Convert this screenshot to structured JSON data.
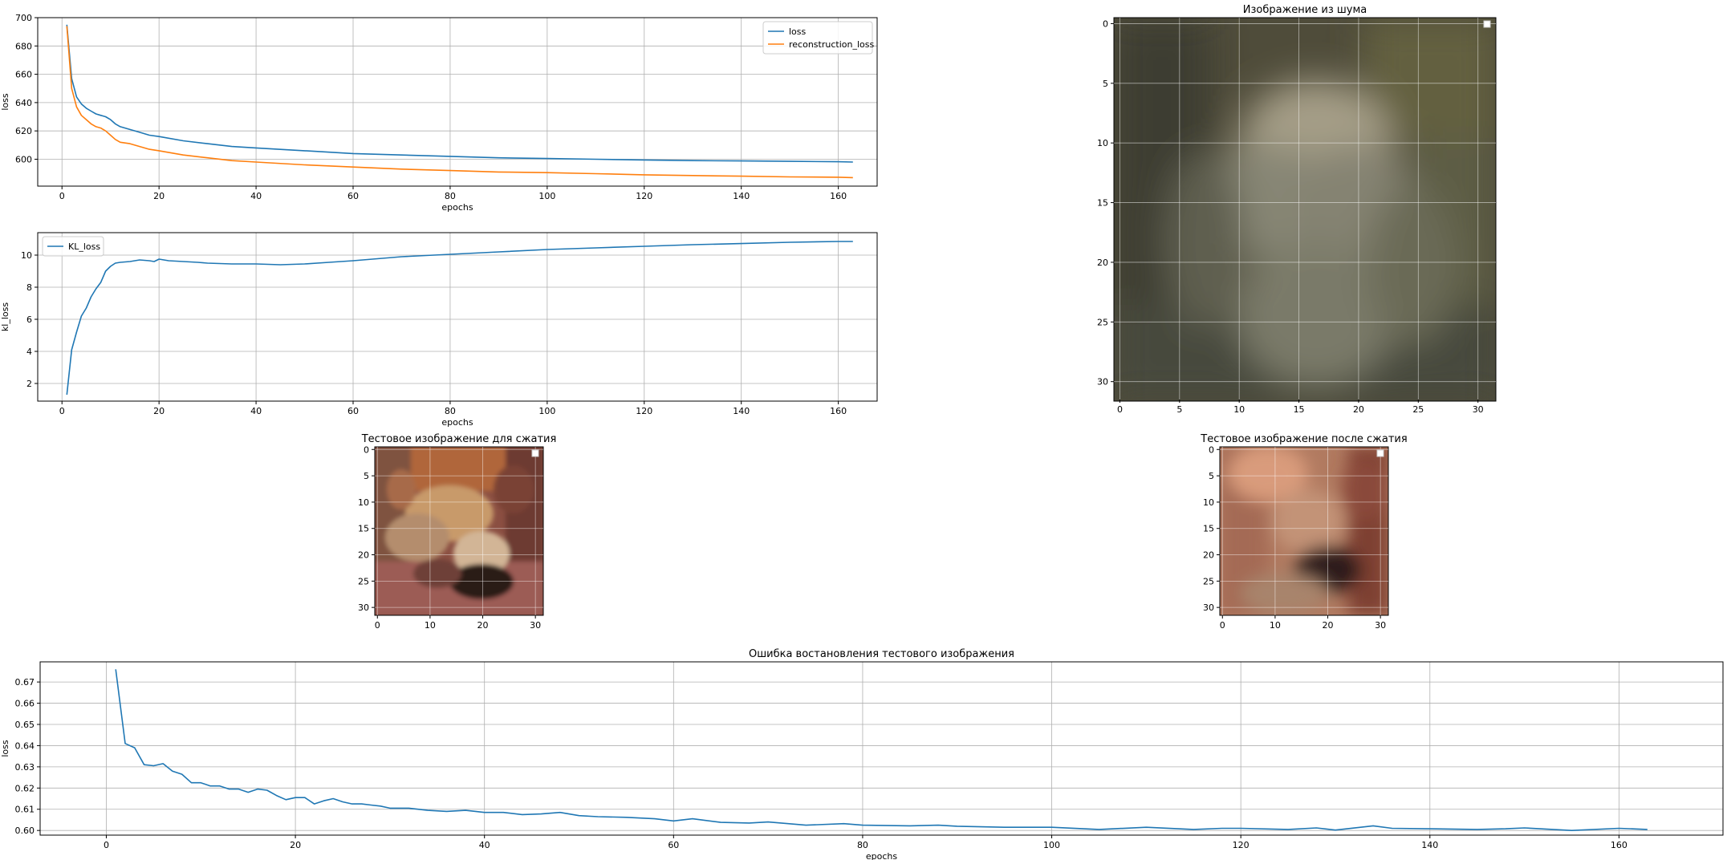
{
  "chart_data": [
    {
      "type": "line",
      "title": "",
      "xlabel": "epochs",
      "ylabel": "loss",
      "xlim": [
        -5,
        168
      ],
      "ylim": [
        581,
        700
      ],
      "xticks": [
        0,
        20,
        40,
        60,
        80,
        100,
        120,
        140,
        160
      ],
      "yticks": [
        600,
        620,
        640,
        660,
        680,
        700
      ],
      "grid": true,
      "legend": "top-right",
      "series": [
        {
          "name": "loss",
          "color": "#1f77b4",
          "x": [
            1,
            2,
            3,
            4,
            5,
            6,
            7,
            8,
            9,
            10,
            11,
            12,
            14,
            16,
            18,
            20,
            25,
            30,
            35,
            40,
            50,
            60,
            70,
            80,
            90,
            100,
            110,
            120,
            130,
            140,
            150,
            160,
            163
          ],
          "y": [
            695,
            657,
            644,
            639,
            636,
            634,
            632,
            631,
            630,
            628,
            625,
            623,
            621,
            619,
            617,
            616,
            613,
            611,
            609,
            608,
            606,
            604,
            603,
            602,
            601,
            600.5,
            600,
            599.5,
            599,
            598.8,
            598.5,
            598.2,
            598
          ]
        },
        {
          "name": "reconstruction_loss",
          "color": "#ff7f0e",
          "x": [
            1,
            2,
            3,
            4,
            5,
            6,
            7,
            8,
            9,
            10,
            11,
            12,
            14,
            16,
            18,
            20,
            25,
            30,
            35,
            40,
            50,
            60,
            70,
            80,
            90,
            100,
            110,
            120,
            130,
            140,
            150,
            160,
            163
          ],
          "y": [
            694,
            650,
            637,
            631,
            628,
            625,
            623,
            622,
            620,
            617,
            614,
            612,
            611,
            609,
            607,
            606,
            603,
            601,
            599,
            598,
            596,
            594.5,
            593,
            592,
            591,
            590.5,
            589.8,
            589,
            588.5,
            588,
            587.5,
            587.3,
            587
          ]
        }
      ]
    },
    {
      "type": "line",
      "title": "",
      "xlabel": "epochs",
      "ylabel": "kl_loss",
      "xlim": [
        -5,
        168
      ],
      "ylim": [
        0.9,
        11.4
      ],
      "xticks": [
        0,
        20,
        40,
        60,
        80,
        100,
        120,
        140,
        160
      ],
      "yticks": [
        2,
        4,
        6,
        8,
        10
      ],
      "grid": true,
      "legend": "top-left",
      "series": [
        {
          "name": "KL_loss",
          "color": "#1f77b4",
          "x": [
            1,
            2,
            3,
            4,
            5,
            6,
            7,
            8,
            9,
            10,
            11,
            12,
            14,
            16,
            18,
            19,
            20,
            22,
            25,
            28,
            30,
            35,
            40,
            45,
            50,
            55,
            60,
            70,
            80,
            90,
            100,
            110,
            120,
            130,
            140,
            150,
            160,
            163
          ],
          "y": [
            1.3,
            4.1,
            5.2,
            6.2,
            6.7,
            7.4,
            7.9,
            8.3,
            9.0,
            9.3,
            9.5,
            9.55,
            9.6,
            9.7,
            9.65,
            9.6,
            9.75,
            9.65,
            9.6,
            9.55,
            9.5,
            9.45,
            9.45,
            9.4,
            9.45,
            9.55,
            9.65,
            9.9,
            10.05,
            10.2,
            10.35,
            10.45,
            10.55,
            10.65,
            10.72,
            10.8,
            10.85,
            10.85
          ]
        }
      ]
    },
    {
      "type": "line",
      "title": "Ошибка востановления тестового изображения",
      "xlabel": "epochs",
      "ylabel": "loss",
      "xlim": [
        -7,
        171
      ],
      "ylim": [
        0.5978,
        0.6795
      ],
      "xticks": [
        0,
        20,
        40,
        60,
        80,
        100,
        120,
        140,
        160
      ],
      "yticks": [
        0.6,
        0.61,
        0.62,
        0.63,
        0.64,
        0.65,
        0.66,
        0.67
      ],
      "grid": true,
      "legend": "none",
      "series": [
        {
          "name": "",
          "color": "#1f77b4",
          "x": [
            1,
            2,
            3,
            4,
            5,
            6,
            7,
            8,
            9,
            10,
            11,
            12,
            13,
            14,
            15,
            16,
            17,
            18,
            19,
            20,
            21,
            22,
            23,
            24,
            25,
            26,
            27,
            28,
            29,
            30,
            32,
            34,
            36,
            38,
            40,
            42,
            44,
            46,
            48,
            50,
            52,
            55,
            58,
            60,
            62,
            65,
            68,
            70,
            74,
            78,
            80,
            85,
            88,
            90,
            95,
            100,
            105,
            110,
            115,
            118,
            120,
            125,
            128,
            130,
            134,
            136,
            140,
            145,
            148,
            150,
            155,
            160,
            163
          ],
          "y": [
            0.676,
            0.641,
            0.639,
            0.631,
            0.6305,
            0.6315,
            0.628,
            0.6265,
            0.6225,
            0.6225,
            0.621,
            0.621,
            0.6195,
            0.6195,
            0.618,
            0.6195,
            0.619,
            0.6165,
            0.6145,
            0.6155,
            0.6155,
            0.6125,
            0.614,
            0.615,
            0.6135,
            0.6125,
            0.6125,
            0.612,
            0.6115,
            0.6105,
            0.6105,
            0.6095,
            0.609,
            0.6095,
            0.6085,
            0.6085,
            0.6075,
            0.6078,
            0.6085,
            0.607,
            0.6065,
            0.6062,
            0.6055,
            0.6045,
            0.6055,
            0.6038,
            0.6035,
            0.604,
            0.6025,
            0.6032,
            0.6025,
            0.6022,
            0.6025,
            0.602,
            0.6015,
            0.6015,
            0.6005,
            0.6015,
            0.6005,
            0.601,
            0.601,
            0.6005,
            0.6012,
            0.6002,
            0.6022,
            0.601,
            0.6008,
            0.6005,
            0.6008,
            0.6012,
            0.6,
            0.601,
            0.6005
          ]
        }
      ]
    }
  ],
  "images": [
    {
      "title": "Изображение из шума",
      "ticks": [
        0,
        5,
        10,
        15,
        20,
        25,
        30
      ],
      "legend": "top-right-empty"
    },
    {
      "title": "Тестовое изображение для сжатия",
      "ticks": [
        0,
        5,
        10,
        15,
        20,
        25,
        30
      ],
      "xticks": [
        0,
        10,
        20,
        30
      ],
      "legend": "top-right-empty"
    },
    {
      "title": "Тестовое изображение после сжатия",
      "ticks": [
        0,
        5,
        10,
        15,
        20,
        25,
        30
      ],
      "xticks": [
        0,
        10,
        20,
        30
      ],
      "legend": "top-right-empty"
    }
  ]
}
